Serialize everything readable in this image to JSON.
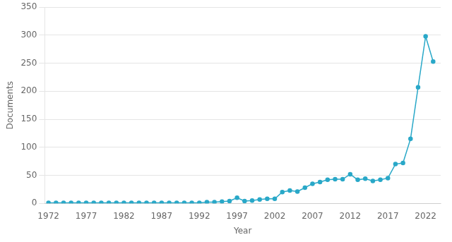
{
  "chart_data": {
    "type": "line",
    "x": [
      1972,
      1973,
      1974,
      1975,
      1976,
      1977,
      1978,
      1979,
      1980,
      1981,
      1982,
      1983,
      1984,
      1985,
      1986,
      1987,
      1988,
      1989,
      1990,
      1991,
      1992,
      1993,
      1994,
      1995,
      1996,
      1997,
      1998,
      1999,
      2000,
      2001,
      2002,
      2003,
      2004,
      2005,
      2006,
      2007,
      2008,
      2009,
      2010,
      2011,
      2012,
      2013,
      2014,
      2015,
      2016,
      2017,
      2018,
      2019,
      2020,
      2021,
      2022,
      2023
    ],
    "values": [
      1,
      1,
      1,
      1,
      1,
      1,
      1,
      1,
      1,
      1,
      1,
      1,
      1,
      1,
      1,
      1,
      1,
      1,
      1,
      1,
      1,
      2,
      2,
      3,
      4,
      10,
      4,
      5,
      7,
      8,
      8,
      20,
      23,
      21,
      28,
      35,
      38,
      42,
      43,
      43,
      52,
      42,
      44,
      40,
      42,
      45,
      70,
      72,
      115,
      207,
      298,
      253
    ],
    "color": "#29a8c8",
    "marker": "circle",
    "xlabel": "Year",
    "ylabel": "Documents",
    "xlim": [
      1971.5,
      2024
    ],
    "ylim": [
      0,
      350
    ],
    "xticks": [
      1972,
      1977,
      1982,
      1987,
      1992,
      1997,
      2002,
      2007,
      2012,
      2017,
      2022
    ],
    "yticks": [
      0,
      50,
      100,
      150,
      200,
      250,
      300,
      350
    ],
    "grid": "y"
  }
}
